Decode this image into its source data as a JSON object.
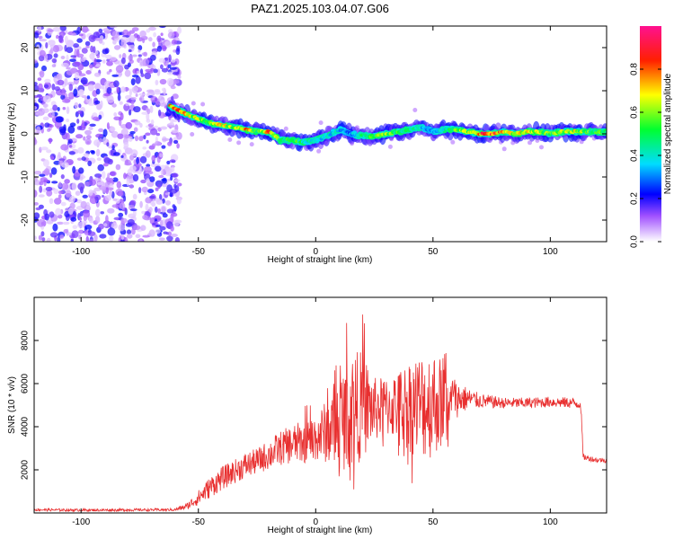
{
  "chart_data": [
    {
      "type": "heatmap",
      "title": "PAZ1.2025.103.04.07.G06",
      "xlabel": "Height of straight line (km)",
      "ylabel": "Frequency (Hz)",
      "xlim": [
        -120,
        124
      ],
      "ylim": [
        -25,
        25
      ],
      "xticks": [
        -100,
        -50,
        0,
        50,
        100
      ],
      "yticks": [
        -20,
        -10,
        0,
        10,
        20
      ],
      "colorbar": {
        "label": "Normalized spectral amplitude",
        "range": [
          0,
          1
        ],
        "ticks": [
          0.0,
          0.2,
          0.4,
          0.6,
          0.8
        ],
        "colormap": "white-purple-blue-cyan-green-yellow-red-pink"
      },
      "noise_region_x": [
        -120,
        -58
      ],
      "ridge": {
        "x": [
          -62,
          -55,
          -50,
          -45,
          -40,
          -35,
          -30,
          -25,
          -20,
          -15,
          -10,
          -5,
          0,
          5,
          10,
          15,
          20,
          25,
          30,
          35,
          40,
          45,
          50,
          55,
          60,
          65,
          70,
          75,
          80,
          85,
          90,
          95,
          100,
          105,
          110,
          115,
          120,
          124
        ],
        "y": [
          6.5,
          4.5,
          3.5,
          2.5,
          2,
          1.5,
          1,
          0.5,
          0.5,
          -1.5,
          -1.5,
          -2,
          -1.5,
          -0.5,
          1,
          0,
          -0.5,
          -0.5,
          0,
          0.5,
          1,
          1.5,
          0.5,
          1,
          1,
          0.5,
          0,
          0,
          0.5,
          0,
          0.5,
          0.5,
          0,
          0.5,
          0.5,
          0.5,
          0.5,
          0.5
        ],
        "amplitude": [
          0.9,
          0.75,
          0.7,
          0.6,
          0.75,
          0.65,
          0.85,
          0.55,
          0.9,
          0.55,
          0.6,
          0.5,
          0.45,
          0.45,
          0.4,
          0.35,
          0.5,
          0.6,
          0.65,
          0.55,
          0.5,
          0.4,
          0.35,
          0.45,
          0.6,
          0.7,
          0.9,
          0.95,
          0.8,
          0.7,
          0.75,
          0.7,
          0.6,
          0.65,
          0.7,
          0.65,
          0.6,
          0.6
        ]
      }
    },
    {
      "type": "line",
      "title": "",
      "xlabel": "Height of straight line (km)",
      "ylabel": "SNR (10 * v/v)",
      "xlim": [
        -120,
        124
      ],
      "ylim": [
        0,
        10000
      ],
      "xticks": [
        -100,
        -50,
        0,
        50,
        100
      ],
      "yticks": [
        2000,
        4000,
        6000,
        8000
      ],
      "series": [
        {
          "color": "#e83030",
          "x": [
            -120,
            -100,
            -80,
            -60,
            -55,
            -50,
            -45,
            -40,
            -35,
            -30,
            -25,
            -20,
            -15,
            -10,
            -5,
            0,
            5,
            10,
            15,
            20,
            25,
            30,
            35,
            40,
            45,
            50,
            55,
            60,
            65,
            70,
            80,
            90,
            100,
            110,
            113,
            114,
            120,
            124
          ],
          "y": [
            150,
            130,
            140,
            150,
            300,
            700,
            1200,
            1600,
            1900,
            2200,
            2400,
            2700,
            3000,
            3200,
            3300,
            3500,
            3800,
            4200,
            4800,
            5000,
            4800,
            4900,
            5000,
            5000,
            5000,
            5100,
            5200,
            5300,
            5300,
            5200,
            5100,
            5100,
            5150,
            5100,
            5050,
            2600,
            2450,
            2450
          ],
          "noise_amplitude": [
            60,
            60,
            60,
            60,
            150,
            350,
            500,
            550,
            550,
            600,
            600,
            700,
            800,
            900,
            1000,
            1100,
            1500,
            2200,
            2800,
            2500,
            1500,
            1400,
            1600,
            2200,
            2500,
            2600,
            1800,
            900,
            500,
            350,
            250,
            250,
            250,
            250,
            250,
            150,
            120,
            120
          ]
        }
      ]
    }
  ]
}
